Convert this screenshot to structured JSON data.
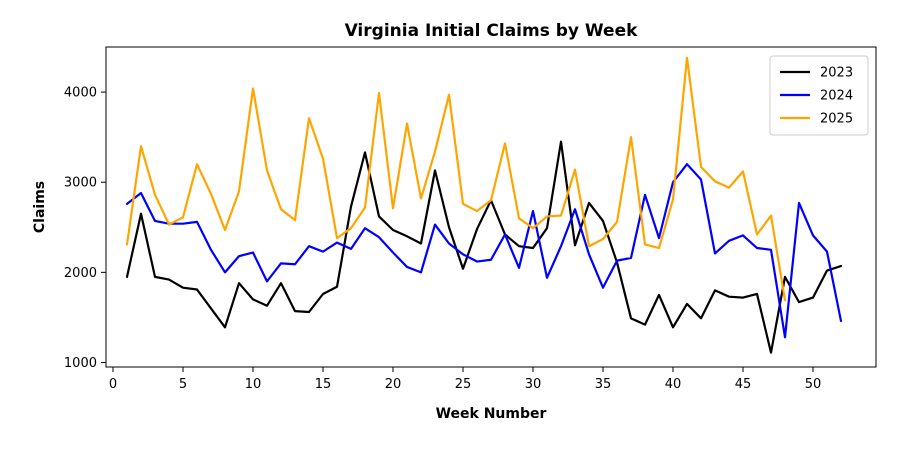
{
  "chart_data": {
    "type": "line",
    "title": "Virginia Initial Claims by Week",
    "xlabel": "Week Number",
    "ylabel": "Claims",
    "xlim": [
      -0.5,
      54.5
    ],
    "ylim": [
      950,
      4500
    ],
    "xticks": [
      0,
      5,
      10,
      15,
      20,
      25,
      30,
      35,
      40,
      45,
      50
    ],
    "yticks": [
      1000,
      2000,
      3000,
      4000
    ],
    "grid": false,
    "legend_position": "top-right",
    "series": [
      {
        "name": "2023",
        "color": "#000000",
        "x": [
          1,
          2,
          3,
          4,
          5,
          6,
          7,
          8,
          9,
          10,
          11,
          12,
          13,
          14,
          15,
          16,
          17,
          18,
          19,
          20,
          21,
          22,
          23,
          24,
          25,
          26,
          27,
          28,
          29,
          30,
          31,
          32,
          33,
          34,
          35,
          36,
          37,
          38,
          39,
          40,
          41,
          42,
          43,
          44,
          45,
          46,
          47,
          48,
          49,
          50,
          51,
          52
        ],
        "values": [
          1950,
          2650,
          1950,
          1920,
          1830,
          1810,
          1600,
          1390,
          1880,
          1700,
          1630,
          1880,
          1570,
          1560,
          1760,
          1840,
          2730,
          3330,
          2620,
          2470,
          2400,
          2320,
          3130,
          2500,
          2040,
          2480,
          2800,
          2420,
          2290,
          2270,
          2490,
          3450,
          2300,
          2770,
          2570,
          2110,
          1490,
          1420,
          1750,
          1390,
          1650,
          1490,
          1800,
          1730,
          1720,
          1760,
          1110,
          1950,
          1670,
          1720,
          2020,
          2070
        ]
      },
      {
        "name": "2024",
        "color": "#0000ff",
        "x": [
          1,
          2,
          3,
          4,
          5,
          6,
          7,
          8,
          9,
          10,
          11,
          12,
          13,
          14,
          15,
          16,
          17,
          18,
          19,
          20,
          21,
          22,
          23,
          24,
          25,
          26,
          27,
          28,
          29,
          30,
          31,
          32,
          33,
          34,
          35,
          36,
          37,
          38,
          39,
          40,
          41,
          42,
          43,
          44,
          45,
          46,
          47,
          48,
          49,
          50,
          51,
          52
        ],
        "values": [
          2760,
          2880,
          2570,
          2540,
          2540,
          2560,
          2250,
          2000,
          2180,
          2220,
          1900,
          2100,
          2090,
          2290,
          2230,
          2330,
          2260,
          2490,
          2390,
          2220,
          2060,
          2000,
          2530,
          2320,
          2200,
          2120,
          2140,
          2420,
          2050,
          2680,
          1940,
          2290,
          2700,
          2200,
          1830,
          2130,
          2160,
          2860,
          2380,
          3000,
          3200,
          3030,
          2210,
          2350,
          2410,
          2270,
          2250,
          1280,
          2770,
          2410,
          2230,
          1460
        ]
      },
      {
        "name": "2025",
        "color": "#ffa500",
        "x": [
          1,
          2,
          3,
          4,
          5,
          6,
          7,
          8,
          9,
          10,
          11,
          12,
          13,
          14,
          15,
          16,
          17,
          18,
          19,
          20,
          21,
          22,
          23,
          24,
          25,
          26,
          27,
          28,
          29,
          30,
          31,
          32,
          33,
          34,
          35,
          36,
          37,
          38,
          39,
          40,
          41,
          42,
          43,
          44,
          45,
          46,
          47,
          48
        ],
        "values": [
          2310,
          3400,
          2860,
          2530,
          2610,
          3200,
          2870,
          2470,
          2900,
          4040,
          3130,
          2700,
          2580,
          3710,
          3260,
          2380,
          2490,
          2720,
          3990,
          2710,
          3650,
          2820,
          3340,
          3970,
          2760,
          2680,
          2800,
          3430,
          2600,
          2490,
          2620,
          2630,
          3140,
          2290,
          2370,
          2560,
          3500,
          2310,
          2270,
          2810,
          4380,
          3170,
          3010,
          2940,
          3120,
          2420,
          2630,
          1690
        ]
      }
    ]
  }
}
